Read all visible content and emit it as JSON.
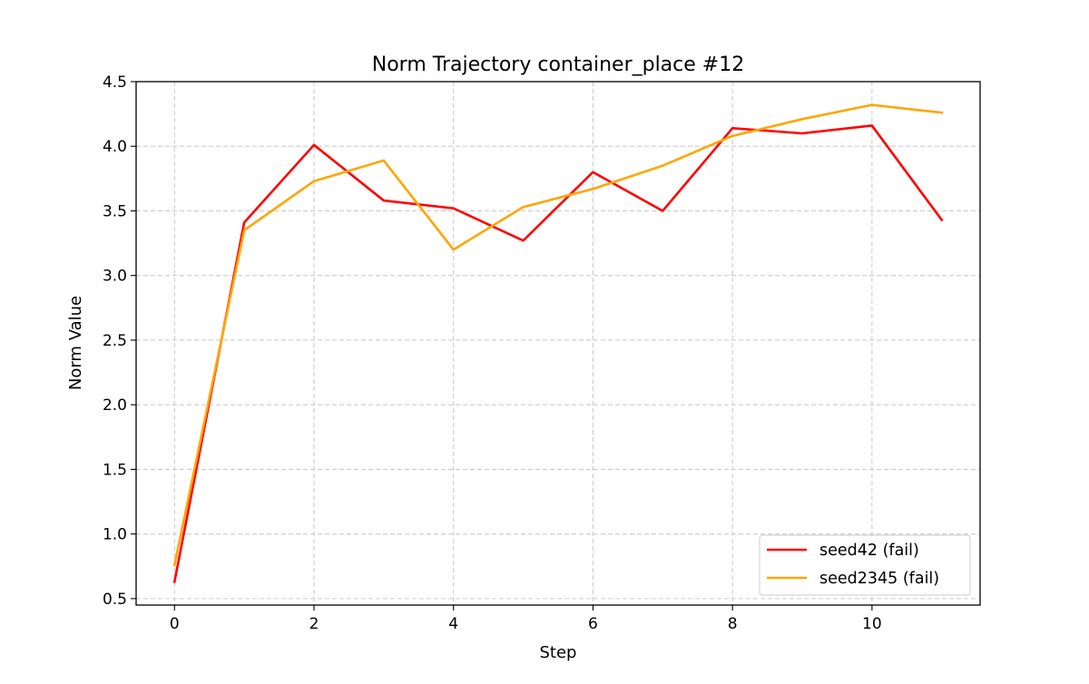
{
  "chart_data": {
    "type": "line",
    "title": "Norm Trajectory container_place #12",
    "xlabel": "Step",
    "ylabel": "Norm Value",
    "xlim": [
      -0.55,
      11.55
    ],
    "ylim": [
      0.45,
      4.5
    ],
    "x_ticks": [
      0,
      2,
      4,
      6,
      8,
      10
    ],
    "y_ticks": [
      0.5,
      1.0,
      1.5,
      2.0,
      2.5,
      3.0,
      3.5,
      4.0,
      4.5
    ],
    "y_tick_labels": [
      "0.5",
      "1.0",
      "1.5",
      "2.0",
      "2.5",
      "3.0",
      "3.5",
      "4.0",
      "4.5"
    ],
    "grid": true,
    "grid_style": "dashed",
    "legend_position": "lower right",
    "x": [
      0,
      1,
      2,
      3,
      4,
      5,
      6,
      7,
      8,
      9,
      10,
      11
    ],
    "series": [
      {
        "name": "seed42 (fail)",
        "color": "#ff0000",
        "values": [
          0.63,
          3.41,
          4.01,
          3.58,
          3.52,
          3.27,
          3.8,
          3.5,
          4.14,
          4.1,
          4.16,
          3.43
        ]
      },
      {
        "name": "seed2345 (fail)",
        "color": "#ffa500",
        "values": [
          0.76,
          3.35,
          3.73,
          3.89,
          3.2,
          3.53,
          3.67,
          3.85,
          4.08,
          4.21,
          4.32,
          4.26
        ]
      }
    ]
  }
}
